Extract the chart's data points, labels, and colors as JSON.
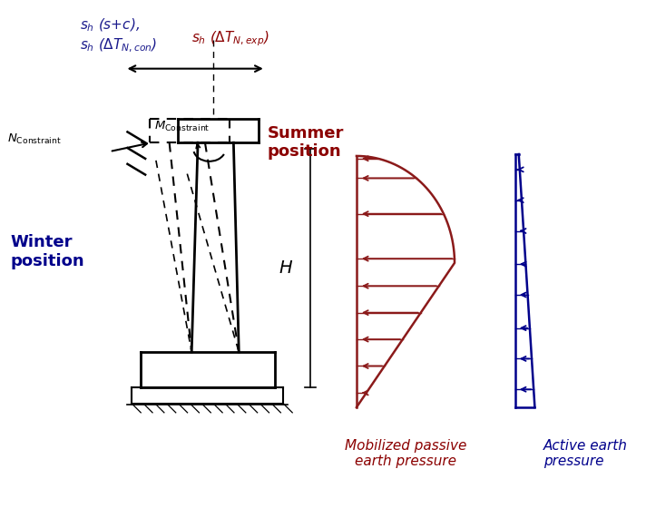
{
  "bg_color": "#ffffff",
  "dark_red": "#8B1A1A",
  "dark_blue": "#00008B",
  "black": "#000000",
  "title_blue": "#1a1a8c",
  "title_red": "#8B0000",
  "figsize": [
    7.12,
    5.6
  ],
  "dpi": 100,
  "summer_text": "Summer\nposition",
  "winter_text": "Winter\nposition",
  "passive_label1": "Mobilized passive",
  "passive_label2": "earth pressure",
  "active_label1": "Active earth",
  "active_label2": "pressure",
  "H_label": "H"
}
